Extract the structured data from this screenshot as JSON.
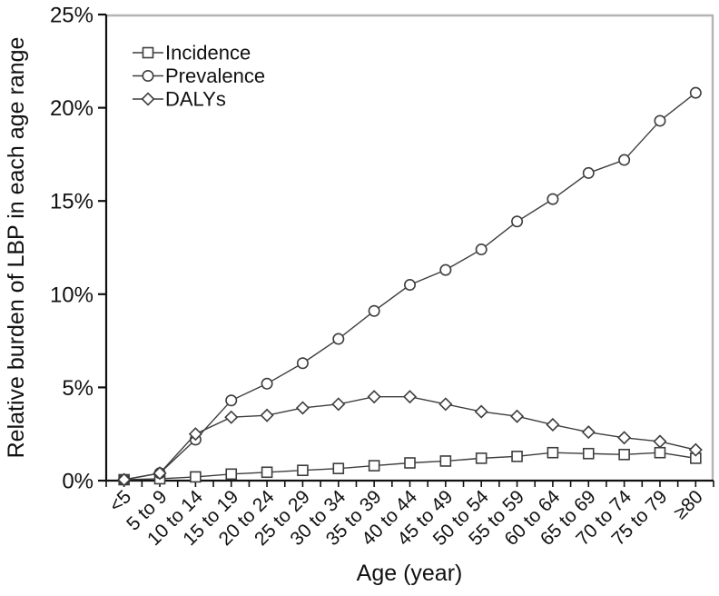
{
  "chart_data": {
    "type": "line",
    "title": "",
    "xlabel": "Age (year)",
    "ylabel": "Relative burden of LBP in each age range",
    "ylim": [
      0,
      25
    ],
    "grid": false,
    "legend_position": "top-left-inside",
    "y_ticks": [
      {
        "value": 0,
        "label": "0%"
      },
      {
        "value": 5,
        "label": "5%"
      },
      {
        "value": 10,
        "label": "10%"
      },
      {
        "value": 15,
        "label": "15%"
      },
      {
        "value": 20,
        "label": "20%"
      },
      {
        "value": 25,
        "label": "25%"
      }
    ],
    "categories": [
      "<5",
      "5 to 9",
      "10 to 14",
      "15 to 19",
      "20 to 24",
      "25 to 29",
      "30 to 34",
      "35 to 39",
      "40 to 44",
      "45 to 49",
      "50 to 54",
      "55 to 59",
      "60 to 64",
      "65 to 69",
      "70 to 74",
      "75 to 79",
      "≥80"
    ],
    "series": [
      {
        "name": "Incidence",
        "marker": "square",
        "values": [
          0.05,
          0.1,
          0.2,
          0.35,
          0.45,
          0.55,
          0.65,
          0.8,
          0.95,
          1.05,
          1.2,
          1.3,
          1.5,
          1.45,
          1.4,
          1.5,
          1.2
        ]
      },
      {
        "name": "Prevalence",
        "marker": "circle",
        "values": [
          0.05,
          0.4,
          2.2,
          4.3,
          5.2,
          6.3,
          7.6,
          9.1,
          10.5,
          11.3,
          12.4,
          13.9,
          15.1,
          16.5,
          17.2,
          19.3,
          20.8
        ]
      },
      {
        "name": "DALYs",
        "marker": "diamond",
        "values": [
          0.05,
          0.4,
          2.5,
          3.4,
          3.5,
          3.9,
          4.1,
          4.5,
          4.5,
          4.1,
          3.7,
          3.45,
          3.0,
          2.6,
          2.3,
          2.1,
          1.65
        ]
      }
    ],
    "colors": {
      "line": "#3d3d3d",
      "axis": "#111111",
      "frame": "#b4b4b4",
      "marker_fill": "#ffffff",
      "text": "#111111"
    }
  }
}
